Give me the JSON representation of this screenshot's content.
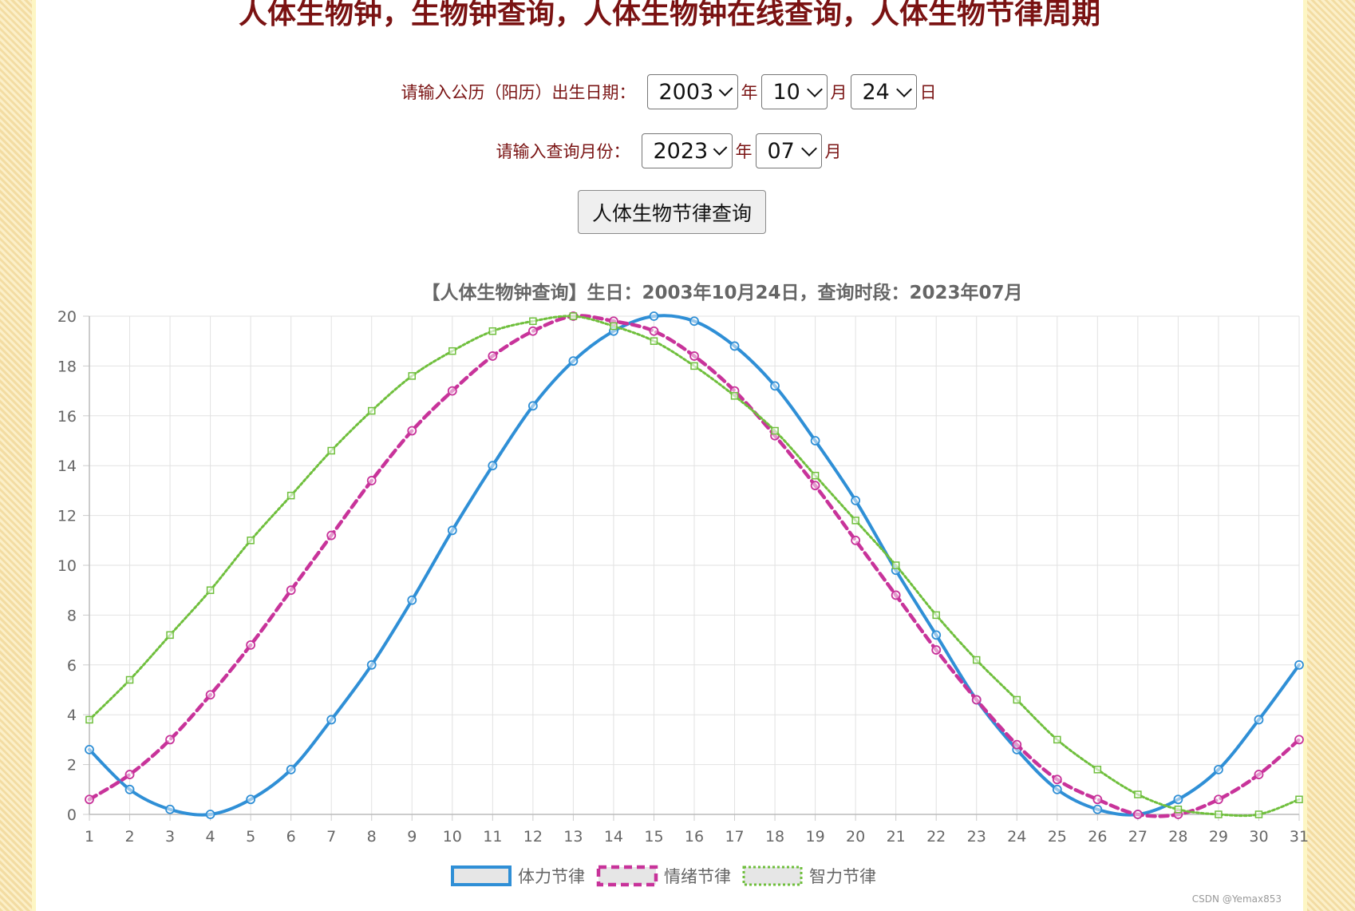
{
  "page": {
    "title": "人体生物钟，生物钟查询，人体生物钟在线查询，人体生物节律周期",
    "birth_label": "请输入公历（阳历）出生日期：",
    "birth_year": "2003",
    "birth_month": "10",
    "birth_day": "24",
    "unit_year": "年",
    "unit_month": "月",
    "unit_day": "日",
    "query_label": "请输入查询月份：",
    "query_year": "2023",
    "query_month": "07",
    "query_button": "人体生物节律查询",
    "credit": "CSDN @Yemax853"
  },
  "colors": {
    "physical": "#2f8fd6",
    "emotional": "#c8339a",
    "intellectual": "#6fbf3c",
    "title_text": "#7a1212"
  },
  "chart_data": {
    "type": "line",
    "title": "【人体生物钟查询】生日：2003年10月24日，查询时段：2023年07月",
    "xlabel": "",
    "ylabel": "",
    "x": [
      1,
      2,
      3,
      4,
      5,
      6,
      7,
      8,
      9,
      10,
      11,
      12,
      13,
      14,
      15,
      16,
      17,
      18,
      19,
      20,
      21,
      22,
      23,
      24,
      25,
      26,
      27,
      28,
      29,
      30,
      31
    ],
    "ylim": [
      0,
      20
    ],
    "yticks": [
      0,
      2,
      4,
      6,
      8,
      10,
      12,
      14,
      16,
      18,
      20
    ],
    "grid": true,
    "legend": "bottom",
    "series": [
      {
        "name": "体力节律",
        "style": "solid",
        "values": [
          2.6,
          1.0,
          0.2,
          0.0,
          0.6,
          1.8,
          3.8,
          6.0,
          8.6,
          11.4,
          14.0,
          16.4,
          18.2,
          19.4,
          20.0,
          19.8,
          18.8,
          17.2,
          15.0,
          12.6,
          9.8,
          7.2,
          4.6,
          2.6,
          1.0,
          0.2,
          0.0,
          0.6,
          1.8,
          3.8,
          6.0
        ]
      },
      {
        "name": "情绪节律",
        "style": "dashed",
        "values": [
          0.6,
          1.6,
          3.0,
          4.8,
          6.8,
          9.0,
          11.2,
          13.4,
          15.4,
          17.0,
          18.4,
          19.4,
          20.0,
          19.8,
          19.4,
          18.4,
          17.0,
          15.2,
          13.2,
          11.0,
          8.8,
          6.6,
          4.6,
          2.8,
          1.4,
          0.6,
          0.0,
          0.0,
          0.6,
          1.6,
          3.0
        ]
      },
      {
        "name": "智力节律",
        "style": "dotted",
        "values": [
          3.8,
          5.4,
          7.2,
          9.0,
          11.0,
          12.8,
          14.6,
          16.2,
          17.6,
          18.6,
          19.4,
          19.8,
          20.0,
          19.6,
          19.0,
          18.0,
          16.8,
          15.4,
          13.6,
          11.8,
          10.0,
          8.0,
          6.2,
          4.6,
          3.0,
          1.8,
          0.8,
          0.2,
          0.0,
          0.0,
          0.6
        ]
      }
    ]
  }
}
